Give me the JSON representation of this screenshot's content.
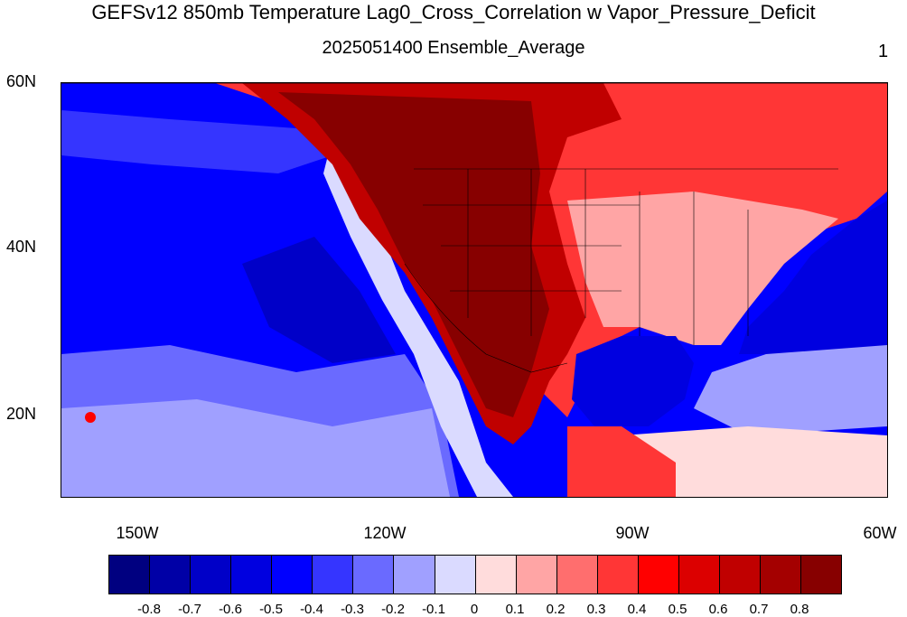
{
  "title": "GEFSv12 850mb Temperature Lag0_Cross_Correlation w Vapor_Pressure_Deficit",
  "subtitle": "2025051400 Ensemble_Average",
  "panel_number": "1",
  "map": {
    "lat_labels": [
      "60N",
      "40N",
      "20N"
    ],
    "lon_labels": [
      "150W",
      "120W",
      "90W",
      "60W"
    ]
  },
  "colorbar": {
    "colors": [
      "#000080",
      "#0000a6",
      "#0000c8",
      "#0000e0",
      "#0000ff",
      "#3535ff",
      "#6a6aff",
      "#a0a0ff",
      "#dadaff",
      "#ffdcdc",
      "#ffa5a5",
      "#ff6e6e",
      "#ff3636",
      "#ff0000",
      "#dc0000",
      "#c00000",
      "#a40000",
      "#870000"
    ],
    "labels": [
      "-0.8",
      "-0.7",
      "-0.6",
      "-0.5",
      "-0.4",
      "-0.3",
      "-0.2",
      "-0.1",
      "0",
      "0.1",
      "0.2",
      "0.3",
      "0.4",
      "0.5",
      "0.6",
      "0.7",
      "0.8"
    ]
  }
}
